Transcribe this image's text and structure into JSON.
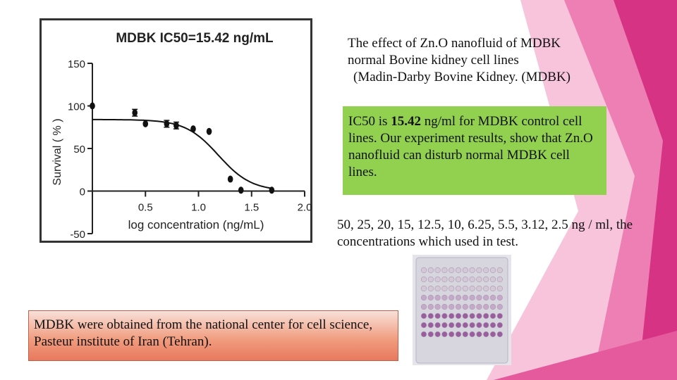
{
  "slide": {
    "description_lines": [
      "The effect of Zn.O nanofluid of MDBK",
      "normal Bovine kidney cell lines",
      "(Madin-Darby Bovine Kidney. (MDBK)"
    ],
    "ic50_pre": "IC50 is ",
    "ic50_value": "15.42",
    "ic50_post": " ng/ml for MDBK control cell lines. Our experiment results, show that Zn.O nanofluid can disturb normal MDBK cell lines.",
    "concentrations_text": "50, 25, 20, 15, 12.5, 10, 6.25, 5.5, 3.12, 2.5 ng / ml, the concentrations which used in test.",
    "source_text": "MDBK were obtained from the national center for cell science, Pasteur institute of Iran (Tehran).",
    "colors": {
      "accent_pink": "#d63384",
      "callout_green": "#92d050",
      "callout_salmon": "#f09a7c"
    }
  },
  "chart_data": {
    "type": "scatter",
    "title": "MDBK IC50=15.42 ng/mL",
    "xlabel": "log concentration (ng/mL)",
    "ylabel": "Survival ( % )",
    "xlim": [
      0.0,
      2.0
    ],
    "ylim": [
      -50,
      150
    ],
    "x_ticks": [
      "0.5",
      "1.0",
      "1.5",
      "2.0"
    ],
    "y_ticks": [
      "150",
      "100",
      "50",
      "0",
      "-50"
    ],
    "x_tick_values": [
      0.5,
      1.0,
      1.5,
      2.0
    ],
    "y_tick_values": [
      150,
      100,
      50,
      0,
      -50
    ],
    "points": [
      {
        "x": 0.0,
        "y": 100
      },
      {
        "x": 0.4,
        "y": 92,
        "err": 4
      },
      {
        "x": 0.5,
        "y": 79
      },
      {
        "x": 0.7,
        "y": 79,
        "err": 4
      },
      {
        "x": 0.79,
        "y": 77,
        "err": 4
      },
      {
        "x": 0.95,
        "y": 73
      },
      {
        "x": 1.1,
        "y": 70
      },
      {
        "x": 1.3,
        "y": 14
      },
      {
        "x": 1.4,
        "y": 1
      },
      {
        "x": 1.69,
        "y": 1
      }
    ],
    "fit": {
      "top": 84,
      "bottom": 0,
      "log_ic50": 1.188,
      "hill": -2.8,
      "x_from": 0.0,
      "x_to": 1.69
    }
  }
}
